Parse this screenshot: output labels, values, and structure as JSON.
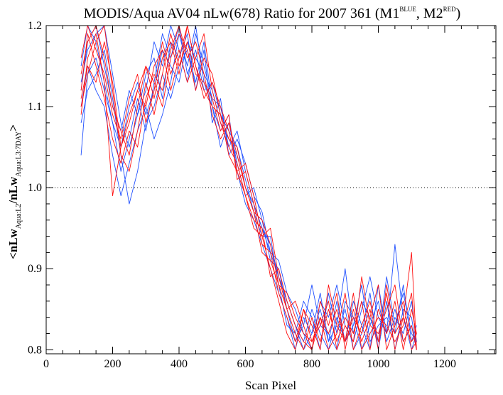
{
  "chart_data": {
    "type": "line",
    "title_main": "MODIS/Aqua AV04 nLw(678) Ratio for 2007 361 (M1",
    "title_sup1": "BLUE",
    "title_mid": ", M2",
    "title_sup2": "RED",
    "title_end": ")",
    "xlabel": "Scan Pixel",
    "ylabel_a": "<nLw",
    "ylabel_sub1": "Aqua:L2",
    "ylabel_b": "/nLw",
    "ylabel_sub2": "Aqua:L3:7DAY",
    "ylabel_c": ">",
    "xlim": [
      0,
      1354
    ],
    "ylim": [
      0.795,
      1.2
    ],
    "xticks": [
      "0",
      "200",
      "400",
      "600",
      "800",
      "1000",
      "1200"
    ],
    "yticks": [
      "0.8",
      "0.9",
      "1.0",
      "1.1",
      "1.2"
    ],
    "reference_line": 1.0,
    "colors": {
      "M1": "#1f4fff",
      "M2": "#ff1010",
      "ref": "#000000"
    },
    "series": [
      {
        "group": "M1",
        "color": "#1f4fff",
        "x": [
          105,
          125,
          150,
          175,
          200,
          225,
          250,
          275,
          300,
          325,
          350,
          375,
          400,
          425,
          450,
          475,
          500,
          525,
          550,
          575,
          600,
          625,
          650,
          675,
          700,
          725,
          750,
          775,
          800,
          825,
          850,
          875,
          900,
          925,
          950,
          975,
          1000,
          1025,
          1050,
          1075,
          1100,
          1115
        ],
        "y": [
          1.04,
          1.14,
          1.16,
          1.12,
          1.08,
          1.05,
          1.1,
          1.13,
          1.09,
          1.12,
          1.17,
          1.15,
          1.13,
          1.18,
          1.16,
          1.14,
          1.12,
          1.08,
          1.06,
          1.04,
          1.0,
          0.98,
          0.95,
          0.93,
          0.89,
          0.86,
          0.83,
          0.81,
          0.85,
          0.82,
          0.8,
          0.84,
          0.81,
          0.86,
          0.83,
          0.8,
          0.88,
          0.82,
          0.85,
          0.81,
          0.83,
          0.8
        ]
      },
      {
        "group": "M1",
        "color": "#1f4fff",
        "x": [
          105,
          125,
          150,
          175,
          200,
          225,
          250,
          275,
          300,
          325,
          350,
          375,
          400,
          425,
          450,
          475,
          500,
          525,
          550,
          575,
          600,
          625,
          650,
          675,
          700,
          725,
          750,
          775,
          800,
          825,
          850,
          875,
          900,
          925,
          950,
          975,
          1000,
          1025,
          1050,
          1075,
          1100,
          1115
        ],
        "y": [
          1.1,
          1.15,
          1.12,
          1.1,
          1.04,
          0.99,
          1.03,
          1.07,
          1.1,
          1.06,
          1.09,
          1.13,
          1.19,
          1.15,
          1.2,
          1.13,
          1.1,
          1.07,
          1.09,
          1.02,
          0.98,
          0.96,
          0.93,
          0.9,
          0.87,
          0.84,
          0.8,
          0.84,
          0.82,
          0.87,
          0.81,
          0.83,
          0.9,
          0.82,
          0.86,
          0.84,
          0.81,
          0.89,
          0.83,
          0.87,
          0.82,
          0.81
        ]
      },
      {
        "group": "M1",
        "color": "#1f4fff",
        "x": [
          105,
          125,
          150,
          175,
          200,
          225,
          250,
          275,
          300,
          325,
          350,
          375,
          400,
          425,
          450,
          475,
          500,
          525,
          550,
          575,
          600,
          625,
          650,
          675,
          700,
          725,
          750,
          775,
          800,
          825,
          850,
          875,
          900,
          925,
          950,
          975,
          1000,
          1025,
          1050,
          1075,
          1100,
          1115
        ],
        "y": [
          1.12,
          1.18,
          1.2,
          1.15,
          1.1,
          1.07,
          1.12,
          1.09,
          1.14,
          1.16,
          1.11,
          1.18,
          1.16,
          1.19,
          1.12,
          1.17,
          1.08,
          1.11,
          1.04,
          1.06,
          1.03,
          0.99,
          0.97,
          0.92,
          0.91,
          0.87,
          0.85,
          0.82,
          0.8,
          0.86,
          0.84,
          0.88,
          0.83,
          0.81,
          0.85,
          0.89,
          0.84,
          0.82,
          0.93,
          0.84,
          0.8,
          0.82
        ]
      },
      {
        "group": "M1",
        "color": "#1f4fff",
        "x": [
          105,
          125,
          150,
          175,
          200,
          225,
          250,
          275,
          300,
          325,
          350,
          375,
          400,
          425,
          450,
          475,
          500,
          525,
          550,
          575,
          600,
          625,
          650,
          675,
          700,
          725,
          750,
          775,
          800,
          825,
          850,
          875,
          900,
          925,
          950,
          975,
          1000,
          1025,
          1050,
          1075,
          1100,
          1115
        ],
        "y": [
          1.15,
          1.2,
          1.18,
          1.13,
          1.08,
          1.02,
          1.06,
          1.11,
          1.07,
          1.13,
          1.19,
          1.16,
          1.2,
          1.14,
          1.17,
          1.12,
          1.13,
          1.09,
          1.07,
          1.05,
          1.01,
          0.97,
          0.94,
          0.94,
          0.88,
          0.83,
          0.82,
          0.86,
          0.84,
          0.8,
          0.87,
          0.82,
          0.85,
          0.8,
          0.82,
          0.87,
          0.8,
          0.86,
          0.8,
          0.85,
          0.84,
          0.8
        ]
      },
      {
        "group": "M1",
        "color": "#1f4fff",
        "x": [
          105,
          125,
          150,
          175,
          200,
          225,
          250,
          275,
          300,
          325,
          350,
          375,
          400,
          425,
          450,
          475,
          500,
          525,
          550,
          575,
          600,
          625,
          650,
          675,
          700,
          725,
          750,
          775,
          800,
          825,
          850,
          875,
          900,
          925,
          950,
          975,
          1000,
          1025,
          1050,
          1075,
          1100,
          1115
        ],
        "y": [
          1.08,
          1.12,
          1.14,
          1.17,
          1.11,
          1.04,
          0.98,
          1.02,
          1.08,
          1.1,
          1.14,
          1.11,
          1.15,
          1.17,
          1.13,
          1.18,
          1.1,
          1.05,
          1.08,
          1.03,
          0.99,
          1.0,
          0.96,
          0.91,
          0.9,
          0.85,
          0.81,
          0.83,
          0.88,
          0.83,
          0.82,
          0.8,
          0.86,
          0.84,
          0.8,
          0.83,
          0.86,
          0.81,
          0.84,
          0.82,
          0.86,
          0.81
        ]
      },
      {
        "group": "M1",
        "color": "#1f4fff",
        "x": [
          105,
          125,
          150,
          175,
          200,
          225,
          250,
          275,
          300,
          325,
          350,
          375,
          400,
          425,
          450,
          475,
          500,
          525,
          550,
          575,
          600,
          625,
          650,
          675,
          700,
          725,
          750,
          775,
          800,
          825,
          850,
          875,
          900,
          925,
          950,
          975,
          1000,
          1025,
          1050,
          1075,
          1100,
          1115
        ],
        "y": [
          1.13,
          1.17,
          1.19,
          1.2,
          1.14,
          1.08,
          1.05,
          1.09,
          1.12,
          1.18,
          1.15,
          1.2,
          1.17,
          1.13,
          1.19,
          1.15,
          1.11,
          1.1,
          1.05,
          1.07,
          1.02,
          0.98,
          0.95,
          0.92,
          0.89,
          0.86,
          0.83,
          0.8,
          0.82,
          0.85,
          0.81,
          0.86,
          0.81,
          0.83,
          0.88,
          0.81,
          0.83,
          0.84,
          0.82,
          0.88,
          0.81,
          0.83
        ]
      },
      {
        "group": "M2",
        "color": "#ff1010",
        "x": [
          105,
          125,
          150,
          175,
          200,
          225,
          250,
          275,
          300,
          325,
          350,
          375,
          400,
          425,
          450,
          475,
          500,
          525,
          550,
          575,
          600,
          625,
          650,
          675,
          700,
          725,
          750,
          775,
          800,
          825,
          850,
          875,
          900,
          925,
          950,
          975,
          1000,
          1025,
          1050,
          1075,
          1100,
          1115
        ],
        "y": [
          1.09,
          1.16,
          1.19,
          1.13,
          0.99,
          1.05,
          1.08,
          1.12,
          1.15,
          1.11,
          1.16,
          1.18,
          1.14,
          1.2,
          1.15,
          1.12,
          1.1,
          1.09,
          1.04,
          1.02,
          0.99,
          0.95,
          0.94,
          0.9,
          0.86,
          0.82,
          0.8,
          0.85,
          0.81,
          0.84,
          0.8,
          0.82,
          0.87,
          0.8,
          0.83,
          0.86,
          0.81,
          0.87,
          0.8,
          0.84,
          0.92,
          0.8
        ]
      },
      {
        "group": "M2",
        "color": "#ff1010",
        "x": [
          105,
          125,
          150,
          175,
          200,
          225,
          250,
          275,
          300,
          325,
          350,
          375,
          400,
          425,
          450,
          475,
          500,
          525,
          550,
          575,
          600,
          625,
          650,
          675,
          700,
          725,
          750,
          775,
          800,
          825,
          850,
          875,
          900,
          925,
          950,
          975,
          1000,
          1025,
          1050,
          1075,
          1100,
          1115
        ],
        "y": [
          1.12,
          1.19,
          1.15,
          1.11,
          1.06,
          1.03,
          1.07,
          1.05,
          1.11,
          1.14,
          1.12,
          1.17,
          1.2,
          1.16,
          1.18,
          1.14,
          1.09,
          1.06,
          1.08,
          1.04,
          1.0,
          0.97,
          0.92,
          0.91,
          0.88,
          0.85,
          0.82,
          0.8,
          0.84,
          0.81,
          0.85,
          0.81,
          0.84,
          0.82,
          0.86,
          0.8,
          0.85,
          0.82,
          0.86,
          0.8,
          0.85,
          0.82
        ]
      },
      {
        "group": "M2",
        "color": "#ff1010",
        "x": [
          105,
          125,
          150,
          175,
          200,
          225,
          250,
          275,
          300,
          325,
          350,
          375,
          400,
          425,
          450,
          475,
          500,
          525,
          550,
          575,
          600,
          625,
          650,
          675,
          700,
          725,
          750,
          775,
          800,
          825,
          850,
          875,
          900,
          925,
          950,
          975,
          1000,
          1025,
          1050,
          1075,
          1100,
          1115
        ],
        "y": [
          1.16,
          1.2,
          1.17,
          1.14,
          1.09,
          1.06,
          1.11,
          1.14,
          1.08,
          1.12,
          1.18,
          1.14,
          1.17,
          1.13,
          1.16,
          1.19,
          1.12,
          1.08,
          1.05,
          1.03,
          0.99,
          0.96,
          0.95,
          0.89,
          0.9,
          0.86,
          0.83,
          0.81,
          0.8,
          0.86,
          0.83,
          0.87,
          0.8,
          0.85,
          0.81,
          0.84,
          0.88,
          0.8,
          0.83,
          0.86,
          0.8,
          0.81
        ]
      },
      {
        "group": "M2",
        "color": "#ff1010",
        "x": [
          105,
          125,
          150,
          175,
          200,
          225,
          250,
          275,
          300,
          325,
          350,
          375,
          400,
          425,
          450,
          475,
          500,
          525,
          550,
          575,
          600,
          625,
          650,
          675,
          700,
          725,
          750,
          775,
          800,
          825,
          850,
          875,
          900,
          925,
          950,
          975,
          1000,
          1025,
          1050,
          1075,
          1100,
          1115
        ],
        "y": [
          1.1,
          1.14,
          1.18,
          1.2,
          1.12,
          1.04,
          1.02,
          1.07,
          1.13,
          1.09,
          1.14,
          1.19,
          1.15,
          1.18,
          1.14,
          1.13,
          1.11,
          1.07,
          1.09,
          1.01,
          1.02,
          0.98,
          0.93,
          0.92,
          0.87,
          0.84,
          0.81,
          0.85,
          0.83,
          0.8,
          0.88,
          0.83,
          0.81,
          0.87,
          0.8,
          0.82,
          0.84,
          0.83,
          0.81,
          0.83,
          0.87,
          0.8
        ]
      },
      {
        "group": "M2",
        "color": "#ff1010",
        "x": [
          105,
          125,
          150,
          175,
          200,
          225,
          250,
          275,
          300,
          325,
          350,
          375,
          400,
          425,
          450,
          475,
          500,
          525,
          550,
          575,
          600,
          625,
          650,
          675,
          700,
          725,
          750,
          775,
          800,
          825,
          850,
          875,
          900,
          925,
          950,
          975,
          1000,
          1025,
          1050,
          1075,
          1100,
          1115
        ],
        "y": [
          1.14,
          1.18,
          1.2,
          1.16,
          1.1,
          1.07,
          1.04,
          1.1,
          1.15,
          1.13,
          1.1,
          1.16,
          1.19,
          1.17,
          1.12,
          1.16,
          1.14,
          1.09,
          1.06,
          1.05,
          1.0,
          0.97,
          0.96,
          0.93,
          0.88,
          0.87,
          0.84,
          0.82,
          0.81,
          0.83,
          0.86,
          0.8,
          0.83,
          0.81,
          0.89,
          0.83,
          0.82,
          0.85,
          0.88,
          0.81,
          0.83,
          0.8
        ]
      },
      {
        "group": "M2",
        "color": "#ff1010",
        "x": [
          105,
          125,
          150,
          175,
          200,
          225,
          250,
          275,
          300,
          325,
          350,
          375,
          400,
          425,
          450,
          475,
          500,
          525,
          550,
          575,
          600,
          625,
          650,
          675,
          700,
          725,
          750,
          775,
          800,
          825,
          850,
          875,
          900,
          925,
          950,
          975,
          1000,
          1025,
          1050,
          1075,
          1100,
          1115
        ],
        "y": [
          1.11,
          1.15,
          1.13,
          1.18,
          1.13,
          1.05,
          1.09,
          1.12,
          1.1,
          1.15,
          1.17,
          1.12,
          1.16,
          1.2,
          1.15,
          1.11,
          1.13,
          1.1,
          1.07,
          1.02,
          1.03,
          0.99,
          0.94,
          0.95,
          0.89,
          0.85,
          0.86,
          0.83,
          0.8,
          0.84,
          0.82,
          0.85,
          0.81,
          0.84,
          0.82,
          0.85,
          0.8,
          0.88,
          0.82,
          0.84,
          0.81,
          0.82
        ]
      }
    ]
  }
}
